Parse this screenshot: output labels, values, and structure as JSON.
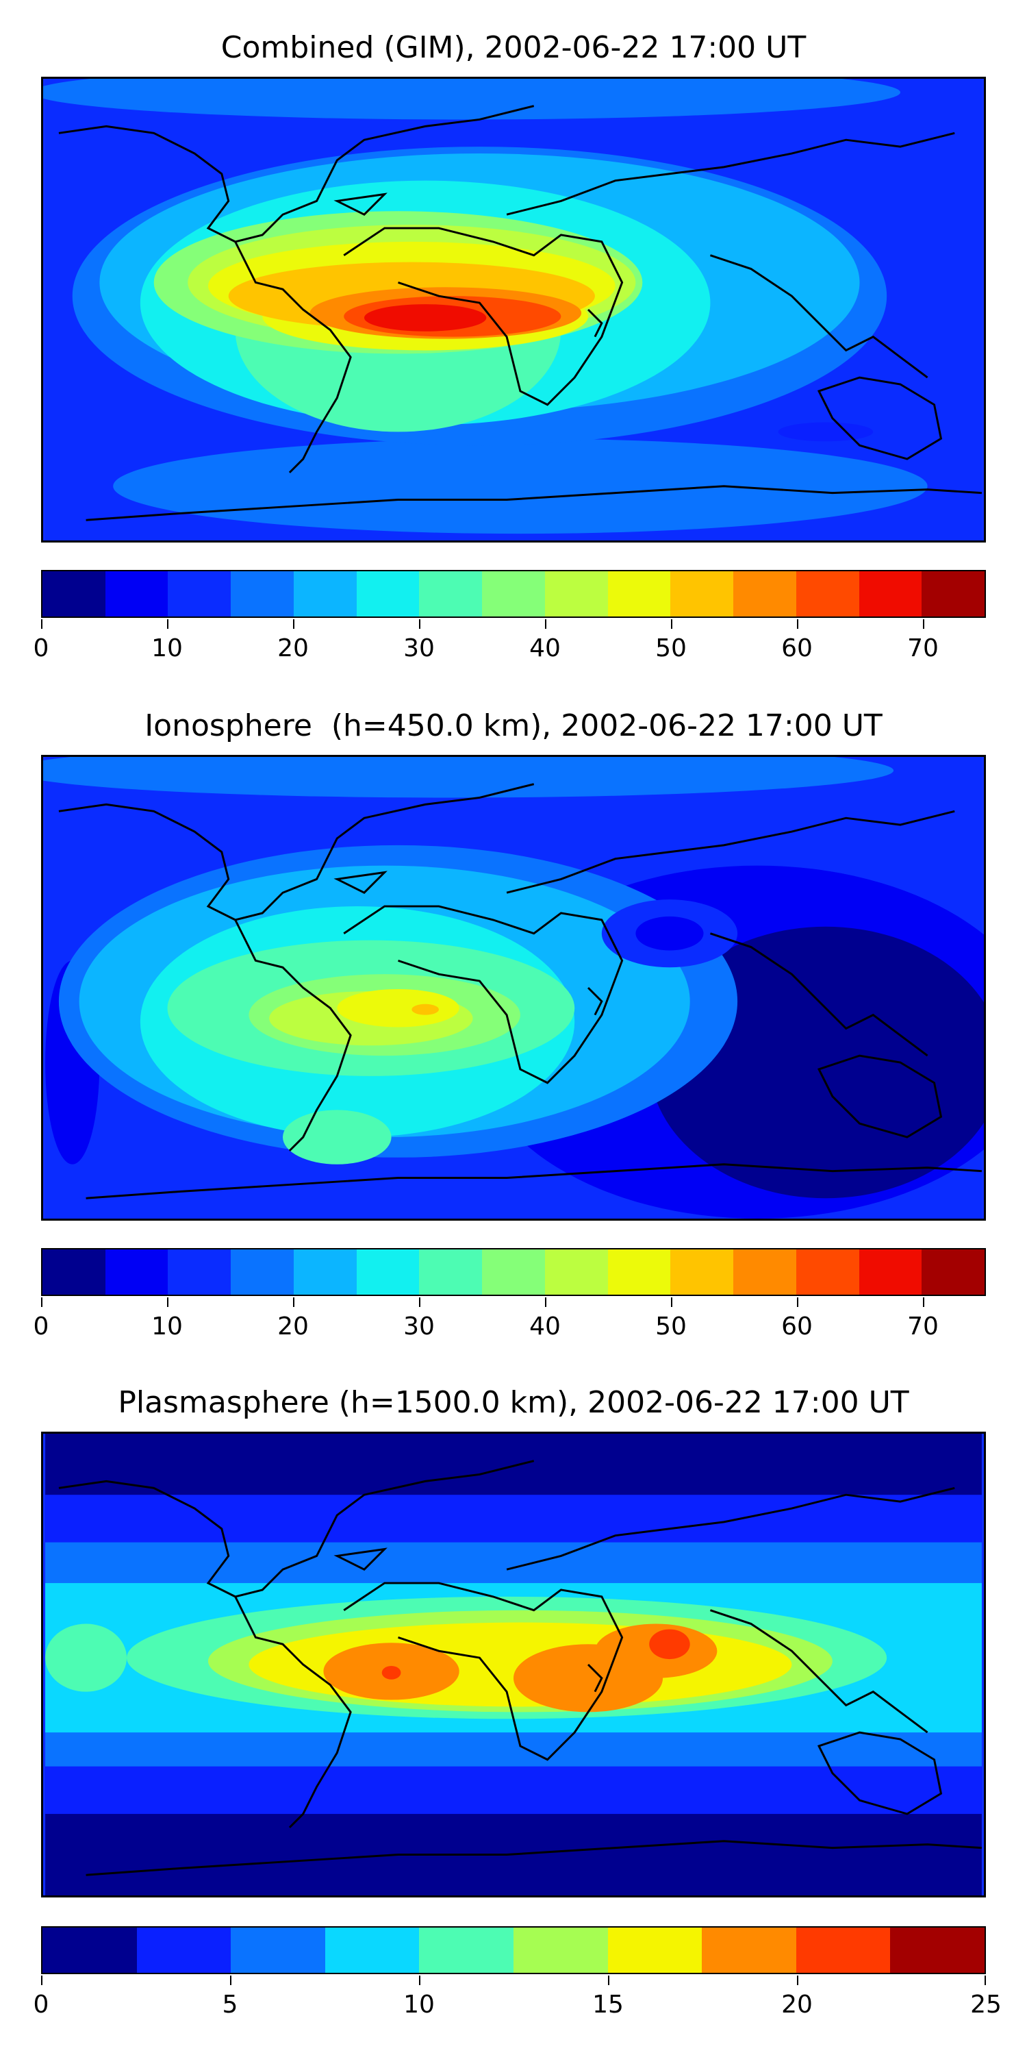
{
  "figure": {
    "panels": [
      {
        "id": "combined",
        "title": "Combined (GIM), 2002-06-22 17:00 UT",
        "colorbar": {
          "min": 0,
          "max": 75,
          "ticks": [
            "0",
            "10",
            "20",
            "30",
            "40",
            "50",
            "60",
            "70"
          ],
          "tick_values": [
            0,
            10,
            20,
            30,
            40,
            50,
            60,
            70
          ],
          "levels": 15,
          "colors": [
            "#00008f",
            "#0000f5",
            "#0a2cff",
            "#0a73ff",
            "#0cb5ff",
            "#12f0f0",
            "#4dfcb3",
            "#85ff78",
            "#bcfe40",
            "#ecfa0a",
            "#ffc400",
            "#ff8a00",
            "#ff4a00",
            "#f00c00",
            "#a30000"
          ]
        }
      },
      {
        "id": "ionosphere",
        "title": "Ionosphere  (h=450.0 km), 2002-06-22 17:00 UT",
        "colorbar": {
          "min": 0,
          "max": 75,
          "ticks": [
            "0",
            "10",
            "20",
            "30",
            "40",
            "50",
            "60",
            "70"
          ],
          "tick_values": [
            0,
            10,
            20,
            30,
            40,
            50,
            60,
            70
          ],
          "levels": 15,
          "colors": [
            "#00008f",
            "#0000f5",
            "#0a2cff",
            "#0a73ff",
            "#0cb5ff",
            "#12f0f0",
            "#4dfcb3",
            "#85ff78",
            "#bcfe40",
            "#ecfa0a",
            "#ffc400",
            "#ff8a00",
            "#ff4a00",
            "#f00c00",
            "#a30000"
          ]
        }
      },
      {
        "id": "plasmasphere",
        "title": "Plasmasphere (h=1500.0 km), 2002-06-22 17:00 UT",
        "colorbar": {
          "min": 0,
          "max": 25,
          "ticks": [
            "0",
            "5",
            "10",
            "15",
            "20",
            "25"
          ],
          "tick_values": [
            0,
            5,
            10,
            15,
            20,
            25
          ],
          "levels": 10,
          "colors": [
            "#00008f",
            "#0a20ff",
            "#0a73ff",
            "#0ad8ff",
            "#4dfcb3",
            "#a6fd52",
            "#f5f500",
            "#ff8a00",
            "#ff3a00",
            "#a30000"
          ]
        }
      }
    ]
  }
}
